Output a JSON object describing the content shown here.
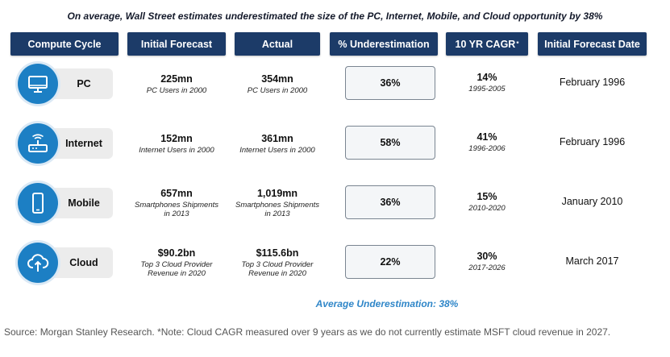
{
  "title": "On average, Wall Street estimates underestimated the size of the PC, Internet, Mobile, and Cloud opportunity by 38%",
  "headers": {
    "cycle": "Compute Cycle",
    "forecast": "Initial Forecast",
    "actual": "Actual",
    "underestimation": "% Underestimation",
    "cagr": "10 YR CAGR",
    "cagr_mark": "*",
    "date": "Initial Forecast Date"
  },
  "colors": {
    "header_bg": "#1c3b68",
    "icon_bg": "#1c7fc4",
    "accent_text": "#2f86c8"
  },
  "chart_data": {
    "type": "table",
    "title": "On average, Wall Street estimates underestimated the size of the PC, Internet, Mobile, and Cloud opportunity by 38%",
    "columns": [
      "Compute Cycle",
      "Initial Forecast",
      "Actual",
      "% Underestimation",
      "10 YR CAGR*",
      "Initial Forecast Date"
    ],
    "rows": [
      {
        "icon": "monitor-icon",
        "cycle": "PC",
        "forecast": "225mn",
        "forecast_sub": "PC Users in 2000",
        "actual": "354mn",
        "actual_sub": "PC Users in 2000",
        "underestimation": "36%",
        "cagr": "14%",
        "cagr_period": "1995-2005",
        "date": "February 1996"
      },
      {
        "icon": "router-icon",
        "cycle": "Internet",
        "forecast": "152mn",
        "forecast_sub": "Internet Users in 2000",
        "actual": "361mn",
        "actual_sub": "Internet Users in 2000",
        "underestimation": "58%",
        "cagr": "41%",
        "cagr_period": "1996-2006",
        "date": "February 1996"
      },
      {
        "icon": "smartphone-icon",
        "cycle": "Mobile",
        "forecast": "657mn",
        "forecast_sub": "Smartphones Shipments in 2013",
        "actual": "1,019mn",
        "actual_sub": "Smartphones Shipments in 2013",
        "underestimation": "36%",
        "cagr": "15%",
        "cagr_period": "2010-2020",
        "date": "January 2010"
      },
      {
        "icon": "cloud-upload-icon",
        "cycle": "Cloud",
        "forecast": "$90.2bn",
        "forecast_sub": "Top 3 Cloud Provider Revenue in 2020",
        "actual": "$115.6bn",
        "actual_sub": "Top 3 Cloud Provider Revenue in 2020",
        "underestimation": "22%",
        "cagr": "30%",
        "cagr_period": "2017-2026",
        "date": "March 2017"
      }
    ]
  },
  "average": "Average Underestimation: 38%",
  "source": "Source: Morgan Stanley Research. *Note: Cloud CAGR measured over 9 years as we do not currently estimate MSFT cloud revenue in 2027."
}
